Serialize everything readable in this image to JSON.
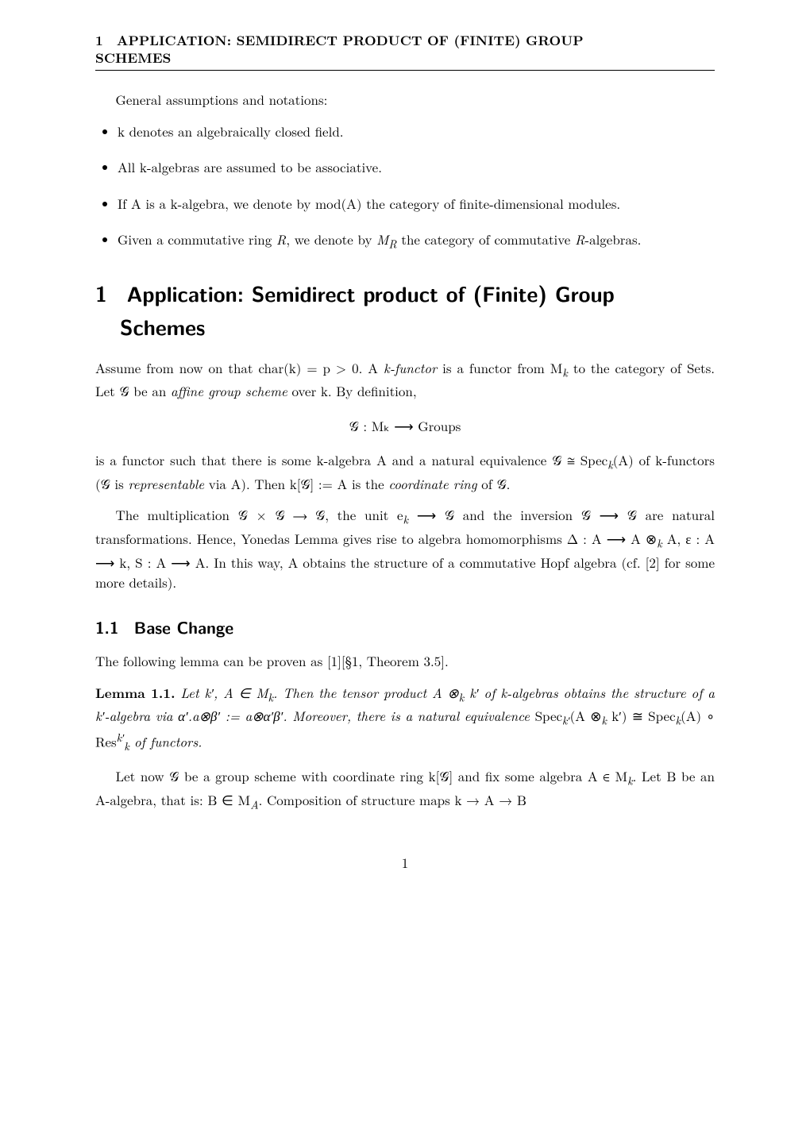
{
  "runningHead": {
    "line1": "1 APPLICATION: SEMIDIRECT PRODUCT OF (FINITE) GROUP",
    "line2": "SCHEMES"
  },
  "intro": "General assumptions and notations:",
  "bullets": [
    "k denotes an algebraically closed field.",
    "All k-algebras are assumed to be associative.",
    "If A is a k-algebra, we denote by mod(A) the category of finite-dimensional modules.",
    "Given a commutative ring R, we denote by Mᴿ the category of commutative R-algebras."
  ],
  "section": {
    "number": "1",
    "titleLine1": "Application: Semidirect product of (Finite) Group",
    "titleLine2": "Schemes"
  },
  "p1a": "Assume from now on that char(k) = p > 0. A ",
  "p1b": "k-functor",
  "p1c": " is a functor from M",
  "p1d": " to the category of Sets. Let 𝒢 be an ",
  "p1e": "affine group scheme",
  "p1f": " over k. By definition,",
  "displayMath": "𝒢 : Mₖ ⟶ Groups",
  "p2a": "is a functor such that there is some k-algebra A and a natural equivalence 𝒢 ≅ Spec",
  "p2b": "(A) of k-functors (𝒢 is ",
  "p2c": "representable",
  "p2d": " via A). Then k[𝒢] := A is the ",
  "p2e": "coordinate ring",
  "p2f": " of 𝒢.",
  "p3a": "The multiplication 𝒢 × 𝒢 ⟶ 𝒢, the unit e",
  "p3b": " ⟶ 𝒢 and the inversion 𝒢 ⟶ 𝒢 are natural transformations. Hence, Yonedas Lemma gives rise to algebra homomorphisms Δ : A ⟶ A ⊗",
  "p3c": " A, ε : A ⟶ k, S : A ⟶ A. In this way, A obtains the structure of a commutative Hopf algebra (cf. [2] for some more details).",
  "subsection": {
    "number": "1.1",
    "title": "Base Change"
  },
  "p4": "The following lemma can be proven as [1][§1, Theorem 3.5].",
  "lemma": {
    "label": "Lemma 1.1.",
    "a": " Let k′, A ∈ M",
    "b": ". Then the tensor product A ⊗",
    "c": " k′ of k-algebras obtains the structure of a k′-algebra via α′.a⊗β′ := a⊗α′β′. Moreover, there is a natural equivalence ",
    "d": "Spec",
    "e": "(A ⊗",
    "f": " k′) ≅ Spec",
    "g": "(A) ∘ Res",
    "h": " of functors."
  },
  "p5a": "Let now 𝒢 be a group scheme with coordinate ring k[𝒢] and fix some algebra A ∈ M",
  "p5b": ". Let B be an A-algebra, that is: B ∈ M",
  "p5c": ". Composition of structure maps k → A → B",
  "pageNumber": "1",
  "sub_k": "k",
  "sub_A": "A",
  "sub_kprime": "k′",
  "sup_kprime": "k′"
}
